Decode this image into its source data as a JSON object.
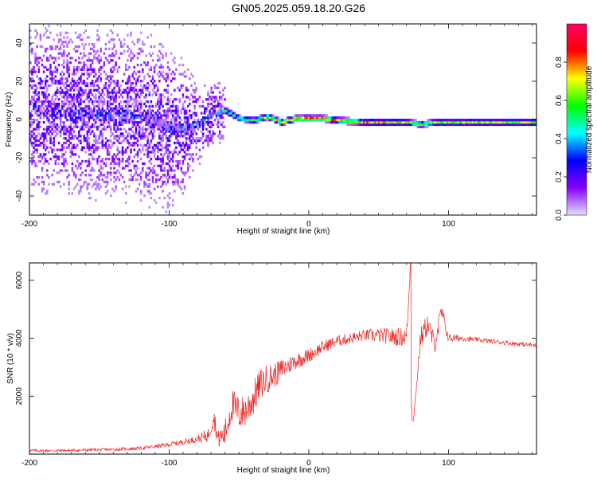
{
  "title": "GN05.2025.059.18.20.G26",
  "chart_data": [
    {
      "type": "heatmap",
      "name": "spectrogram",
      "xlabel": "Height of straight line (km)",
      "ylabel": "Frequency (Hz)",
      "xlim": [
        -200,
        163
      ],
      "ylim": [
        -50,
        50
      ],
      "xticks": [
        -200,
        -100,
        0,
        100
      ],
      "xtick_labels": [
        "-200",
        "-100",
        "0",
        "100"
      ],
      "yticks": [
        -40,
        -20,
        0,
        20,
        40
      ],
      "ytick_labels": [
        "-40",
        "-20",
        "0",
        "20",
        "40"
      ],
      "colorbar": {
        "label": "Normalized spectral amplitude",
        "range": [
          0,
          1
        ],
        "ticks": [
          0.0,
          0.2,
          0.4,
          0.6,
          0.8
        ],
        "tick_labels": [
          "0.0",
          "0.2",
          "0.4",
          "0.6",
          "0.8"
        ],
        "colormap": [
          "#e0e0ff",
          "#8800ff",
          "#0000ff",
          "#00ffff",
          "#00ff00",
          "#ffff00",
          "#ff0000",
          "#ff0066"
        ]
      },
      "ridge": {
        "x": [
          -200,
          -180,
          -160,
          -140,
          -120,
          -100,
          -90,
          -80,
          -70,
          -60,
          -50,
          -40,
          -30,
          -20,
          -10,
          0,
          10,
          20,
          40,
          60,
          70,
          80,
          90,
          100,
          120,
          140,
          163
        ],
        "freq": [
          5,
          3,
          2,
          2,
          1,
          -5,
          -6,
          -3,
          2,
          4,
          0,
          -1,
          1,
          -2,
          0,
          0,
          0,
          -1,
          -2,
          -2,
          -2,
          -3,
          -2,
          -2,
          -2,
          -2,
          -2
        ],
        "peak_amplitude": [
          0.2,
          0.25,
          0.3,
          0.3,
          0.3,
          0.35,
          0.4,
          0.4,
          0.45,
          0.5,
          0.55,
          0.6,
          0.7,
          0.8,
          0.85,
          0.95,
          0.9,
          0.85,
          0.8,
          0.75,
          0.7,
          0.7,
          0.7,
          0.65,
          0.7,
          0.7,
          0.7
        ],
        "spread_hz": [
          25,
          25,
          25,
          25,
          25,
          25,
          20,
          12,
          10,
          8,
          6,
          5,
          4,
          3,
          3,
          2,
          2,
          2,
          2,
          2,
          2,
          2,
          2,
          2,
          2,
          2,
          2
        ]
      }
    },
    {
      "type": "line",
      "name": "snr",
      "xlabel": "Height of straight line (km)",
      "ylabel": "SNR (10 * v/v)",
      "xlim": [
        -200,
        163
      ],
      "ylim": [
        0,
        6600
      ],
      "xticks": [
        -200,
        -100,
        0,
        100
      ],
      "xtick_labels": [
        "-200",
        "-100",
        "0",
        "100"
      ],
      "yticks": [
        2000,
        4000,
        6000
      ],
      "ytick_labels": [
        "2000",
        "4000",
        "6000"
      ],
      "color": "#ee2222",
      "series": [
        {
          "name": "SNR",
          "x": [
            -200,
            -180,
            -160,
            -140,
            -120,
            -110,
            -100,
            -90,
            -80,
            -72,
            -68,
            -65,
            -60,
            -55,
            -50,
            -45,
            -40,
            -35,
            -30,
            -25,
            -20,
            -10,
            0,
            10,
            20,
            30,
            40,
            50,
            60,
            70,
            73,
            75,
            80,
            85,
            90,
            95,
            100,
            110,
            120,
            130,
            140,
            150,
            163
          ],
          "values": [
            120,
            120,
            140,
            160,
            200,
            260,
            330,
            420,
            520,
            650,
            1300,
            500,
            700,
            1700,
            1400,
            1500,
            1900,
            2400,
            2600,
            2700,
            2900,
            3200,
            3400,
            3700,
            3900,
            4000,
            4100,
            4100,
            4050,
            4050,
            6600,
            1200,
            4000,
            4500,
            3800,
            4900,
            4000,
            4000,
            3950,
            3900,
            3850,
            3800,
            3750
          ],
          "noise_amplitude": [
            50,
            50,
            50,
            55,
            60,
            70,
            80,
            100,
            120,
            250,
            350,
            300,
            500,
            600,
            600,
            600,
            600,
            550,
            500,
            450,
            380,
            300,
            250,
            220,
            200,
            200,
            200,
            250,
            300,
            350,
            0,
            0,
            350,
            400,
            350,
            350,
            150,
            100,
            80,
            80,
            80,
            80,
            80
          ]
        }
      ]
    }
  ]
}
